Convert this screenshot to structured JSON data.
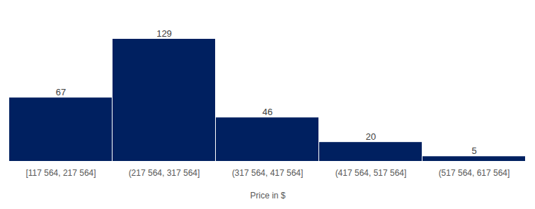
{
  "chart_data": {
    "type": "bar",
    "categories": [
      "[117 564, 217 564]",
      "(217 564, 317 564]",
      "(317 564, 417 564]",
      "(417 564, 517 564]",
      "(517 564, 617 564]"
    ],
    "values": [
      67,
      129,
      46,
      20,
      5
    ],
    "color": "#002060",
    "xlabel": "Price in $",
    "ylim": [
      0,
      129
    ],
    "data_labels": true,
    "tick_labels": "x",
    "grid": false
  }
}
